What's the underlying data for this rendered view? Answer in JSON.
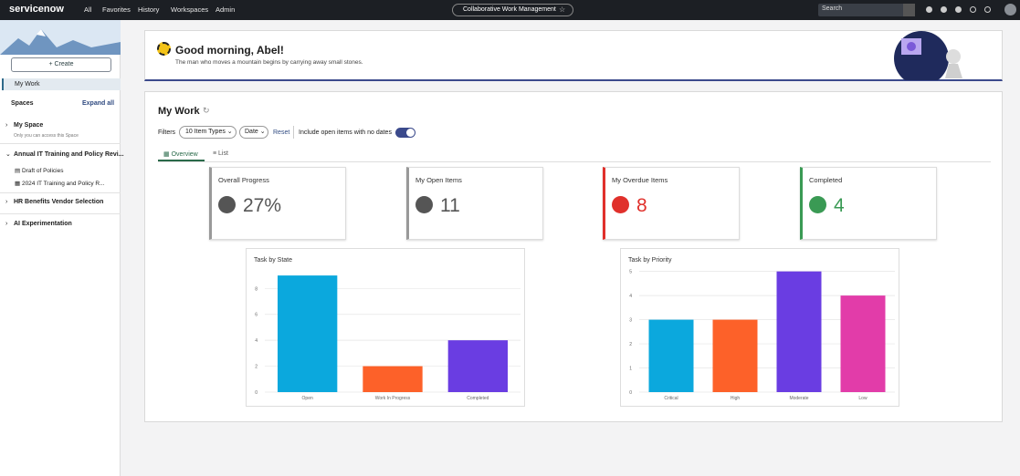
{
  "nav": {
    "brand": "servicenow",
    "items": [
      "All",
      "Favorites",
      "History",
      "Workspaces",
      "Admin"
    ],
    "workspace": "Collaborative Work Management",
    "search": "Search"
  },
  "sidebar": {
    "create": "+ Create",
    "my_work": "My Work",
    "spaces_label": "Spaces",
    "expand_all": "Expand all",
    "spaces": [
      {
        "name": "My Space",
        "note": "Only you can access this Space",
        "children": []
      },
      {
        "name": "Annual IT Training and Policy Revi...",
        "children": [
          "Draft of Policies",
          "2024 IT Training and Policy R..."
        ]
      },
      {
        "name": "HR Benefits Vendor Selection",
        "children": []
      },
      {
        "name": "AI Experimentation",
        "children": []
      }
    ]
  },
  "banner": {
    "greeting": "Good morning, Abel!",
    "quote": "The man who moves a mountain begins by carrying away small stones."
  },
  "my_work": {
    "title": "My Work",
    "filters_label": "Filters",
    "filter_item_types": "10 Item Types",
    "filter_date": "Date",
    "reset": "Reset",
    "toggle_label": "Include open items with no dates",
    "tabs": [
      "Overview",
      "List"
    ],
    "cards": [
      {
        "label": "Overall Progress",
        "value": "27%"
      },
      {
        "label": "My Open Items",
        "value": "11"
      },
      {
        "label": "My Overdue Items",
        "value": "8"
      },
      {
        "label": "Completed",
        "value": "4"
      }
    ]
  },
  "chart_data": [
    {
      "type": "bar",
      "title": "Task by State",
      "categories": [
        "Open",
        "Work In Progress",
        "Completed"
      ],
      "values": [
        9,
        2,
        4
      ],
      "colors": [
        "#0ba8dd",
        "#fd6129",
        "#6a3de2"
      ],
      "ylim": [
        0,
        9.5
      ],
      "yticks": [
        0,
        2,
        4,
        6,
        8
      ],
      "grid": true
    },
    {
      "type": "bar",
      "title": "Task by Priority",
      "categories": [
        "Critical",
        "High",
        "Moderate",
        "Low"
      ],
      "values": [
        3,
        3,
        5,
        4
      ],
      "colors": [
        "#0ba8dd",
        "#fd6129",
        "#6a3de2",
        "#e23ca9"
      ],
      "ylim": [
        0,
        5.1
      ],
      "yticks": [
        0,
        1,
        2,
        3,
        4,
        5
      ],
      "grid": true
    }
  ]
}
